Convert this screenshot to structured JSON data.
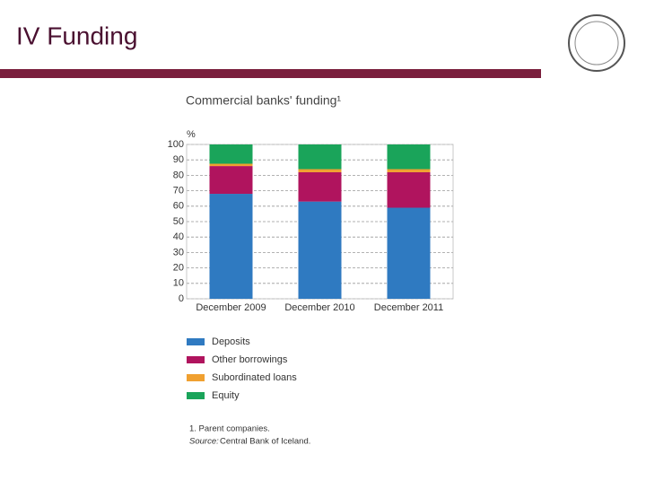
{
  "slide_title": "IV Funding",
  "chart_data": {
    "type": "bar",
    "stacked": true,
    "title": "Commercial banks' funding¹",
    "y_unit": "%",
    "categories": [
      "December 2009",
      "December 2010",
      "December 2011"
    ],
    "series": [
      {
        "name": "Deposits",
        "color": "#2f7ac1",
        "values": [
          68,
          63,
          59
        ]
      },
      {
        "name": "Other borrowings",
        "color": "#b0145e",
        "values": [
          18,
          19,
          23
        ]
      },
      {
        "name": "Subordinated loans",
        "color": "#f0a030",
        "values": [
          1.5,
          2,
          2
        ]
      },
      {
        "name": "Equity",
        "color": "#1aa45a",
        "values": [
          12.5,
          16,
          16
        ]
      }
    ],
    "ylim": [
      0,
      100
    ],
    "yticks": [
      0,
      10,
      20,
      30,
      40,
      50,
      60,
      70,
      80,
      90,
      100
    ],
    "grid": true
  },
  "footnotes": {
    "note": "1. Parent companies.",
    "source_label": "Source:",
    "source": "Central Bank of Iceland."
  }
}
